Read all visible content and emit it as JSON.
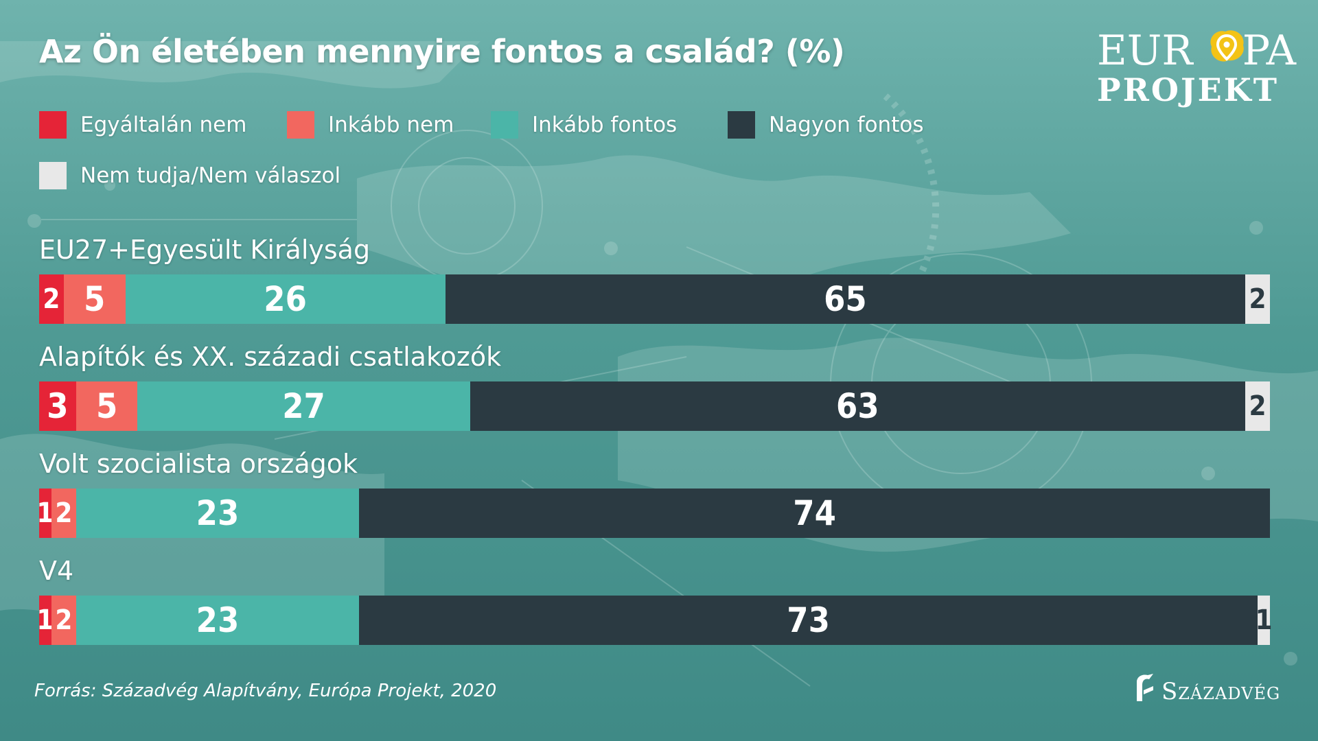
{
  "title": "Az Ön életében mennyire fontos a család? (%)",
  "source": "Forrás: Századvég Alapítvány, Európa Projekt, 2020",
  "logos": {
    "europa": "EUR PA",
    "projekt": "PROJEKT",
    "szazadveg": "Századvég"
  },
  "colors": {
    "egyaltalan_nem": "#e52437",
    "inkabb_nem": "#f2675f",
    "inkabb_fontos": "#4bb5a8",
    "nagyon_fontos": "#2b3a42",
    "nem_tudja": "#e8e8e8"
  },
  "chart_data": {
    "type": "bar",
    "stacked": true,
    "orientation": "horizontal",
    "title": "Az Ön életében mennyire fontos a család? (%)",
    "legend_position": "top-left",
    "categories": [
      "EU27+Egyesült Királyság",
      "Alapítók és XX. századi csatlakozók",
      "Volt szocialista országok",
      "V4"
    ],
    "series": [
      {
        "name": "Egyáltalán nem",
        "color": "#e52437",
        "values": [
          2,
          3,
          1,
          1
        ]
      },
      {
        "name": "Inkább nem",
        "color": "#f2675f",
        "values": [
          5,
          5,
          2,
          2
        ]
      },
      {
        "name": "Inkább fontos",
        "color": "#4bb5a8",
        "values": [
          26,
          27,
          23,
          23
        ]
      },
      {
        "name": "Nagyon fontos",
        "color": "#2b3a42",
        "values": [
          65,
          63,
          74,
          73
        ]
      },
      {
        "name": "Nem tudja/Nem válaszol",
        "color": "#e8e8e8",
        "values": [
          2,
          2,
          0,
          1
        ]
      }
    ]
  }
}
